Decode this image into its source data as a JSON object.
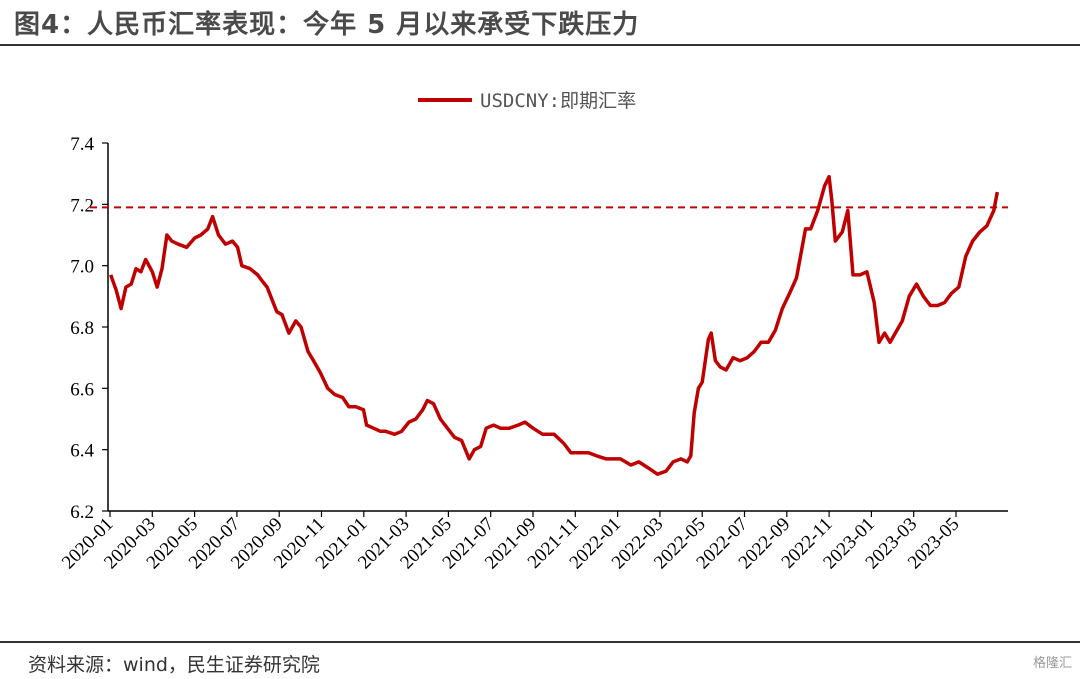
{
  "header": {
    "title": "图4：人民币汇率表现：今年 5 月以来承受下跌压力"
  },
  "footer": {
    "source": "资料来源：wind，民生证券研究院",
    "watermark": "格隆汇"
  },
  "colors": {
    "series": "#c00000",
    "axis": "#000000"
  },
  "chart_data": {
    "type": "line",
    "title": "",
    "xlabel": "",
    "ylabel": "",
    "ylim": [
      6.2,
      7.4
    ],
    "yticks": [
      "6.2",
      "6.4",
      "6.6",
      "6.8",
      "7.0",
      "7.2",
      "7.4"
    ],
    "xticks": [
      "2020-01",
      "2020-03",
      "2020-05",
      "2020-07",
      "2020-09",
      "2020-11",
      "2021-01",
      "2021-03",
      "2021-05",
      "2021-07",
      "2021-09",
      "2021-11",
      "2022-01",
      "2022-03",
      "2022-05",
      "2022-07",
      "2022-09",
      "2022-11",
      "2023-01",
      "2023-03",
      "2023-05"
    ],
    "grid": false,
    "legend": "top-center",
    "reference_line": {
      "y": 7.19,
      "style": "dashed"
    },
    "series": [
      {
        "name": "USDCNY:即期汇率",
        "points": [
          [
            "2020-01-02",
            6.97
          ],
          [
            "2020-01-10",
            6.92
          ],
          [
            "2020-01-17",
            6.86
          ],
          [
            "2020-01-24",
            6.93
          ],
          [
            "2020-02-01",
            6.94
          ],
          [
            "2020-02-08",
            6.99
          ],
          [
            "2020-02-15",
            6.98
          ],
          [
            "2020-02-22",
            7.02
          ],
          [
            "2020-03-01",
            6.98
          ],
          [
            "2020-03-08",
            6.93
          ],
          [
            "2020-03-15",
            6.99
          ],
          [
            "2020-03-22",
            7.1
          ],
          [
            "2020-03-29",
            7.08
          ],
          [
            "2020-04-08",
            7.07
          ],
          [
            "2020-04-20",
            7.06
          ],
          [
            "2020-05-01",
            7.09
          ],
          [
            "2020-05-10",
            7.1
          ],
          [
            "2020-05-20",
            7.12
          ],
          [
            "2020-05-27",
            7.16
          ],
          [
            "2020-06-05",
            7.1
          ],
          [
            "2020-06-15",
            7.07
          ],
          [
            "2020-06-25",
            7.08
          ],
          [
            "2020-07-02",
            7.06
          ],
          [
            "2020-07-08",
            7.0
          ],
          [
            "2020-07-20",
            6.99
          ],
          [
            "2020-07-31",
            6.97
          ],
          [
            "2020-08-07",
            6.95
          ],
          [
            "2020-08-14",
            6.93
          ],
          [
            "2020-08-28",
            6.85
          ],
          [
            "2020-09-05",
            6.84
          ],
          [
            "2020-09-15",
            6.78
          ],
          [
            "2020-09-25",
            6.82
          ],
          [
            "2020-10-02",
            6.8
          ],
          [
            "2020-10-12",
            6.72
          ],
          [
            "2020-10-20",
            6.69
          ],
          [
            "2020-10-30",
            6.65
          ],
          [
            "2020-11-10",
            6.6
          ],
          [
            "2020-11-20",
            6.58
          ],
          [
            "2020-12-01",
            6.57
          ],
          [
            "2020-12-10",
            6.54
          ],
          [
            "2020-12-20",
            6.54
          ],
          [
            "2020-12-31",
            6.53
          ],
          [
            "2021-01-05",
            6.48
          ],
          [
            "2021-01-15",
            6.47
          ],
          [
            "2021-01-25",
            6.46
          ],
          [
            "2021-02-02",
            6.46
          ],
          [
            "2021-02-15",
            6.45
          ],
          [
            "2021-02-25",
            6.46
          ],
          [
            "2021-03-05",
            6.49
          ],
          [
            "2021-03-15",
            6.5
          ],
          [
            "2021-03-25",
            6.53
          ],
          [
            "2021-04-01",
            6.56
          ],
          [
            "2021-04-10",
            6.55
          ],
          [
            "2021-04-20",
            6.5
          ],
          [
            "2021-04-30",
            6.47
          ],
          [
            "2021-05-10",
            6.44
          ],
          [
            "2021-05-20",
            6.43
          ],
          [
            "2021-05-31",
            6.37
          ],
          [
            "2021-06-08",
            6.4
          ],
          [
            "2021-06-17",
            6.41
          ],
          [
            "2021-06-25",
            6.47
          ],
          [
            "2021-07-05",
            6.48
          ],
          [
            "2021-07-15",
            6.47
          ],
          [
            "2021-07-28",
            6.47
          ],
          [
            "2021-08-10",
            6.48
          ],
          [
            "2021-08-20",
            6.49
          ],
          [
            "2021-09-01",
            6.47
          ],
          [
            "2021-09-15",
            6.45
          ],
          [
            "2021-10-01",
            6.45
          ],
          [
            "2021-10-15",
            6.42
          ],
          [
            "2021-10-25",
            6.39
          ],
          [
            "2021-11-10",
            6.39
          ],
          [
            "2021-11-20",
            6.39
          ],
          [
            "2021-12-01",
            6.38
          ],
          [
            "2021-12-15",
            6.37
          ],
          [
            "2022-01-05",
            6.37
          ],
          [
            "2022-01-20",
            6.35
          ],
          [
            "2022-02-01",
            6.36
          ],
          [
            "2022-02-15",
            6.34
          ],
          [
            "2022-02-28",
            6.32
          ],
          [
            "2022-03-10",
            6.33
          ],
          [
            "2022-03-20",
            6.36
          ],
          [
            "2022-04-01",
            6.37
          ],
          [
            "2022-04-10",
            6.36
          ],
          [
            "2022-04-15",
            6.38
          ],
          [
            "2022-04-20",
            6.52
          ],
          [
            "2022-04-26",
            6.6
          ],
          [
            "2022-05-01",
            6.62
          ],
          [
            "2022-05-10",
            6.76
          ],
          [
            "2022-05-14",
            6.78
          ],
          [
            "2022-05-20",
            6.69
          ],
          [
            "2022-05-27",
            6.67
          ],
          [
            "2022-06-05",
            6.66
          ],
          [
            "2022-06-15",
            6.7
          ],
          [
            "2022-06-25",
            6.69
          ],
          [
            "2022-07-05",
            6.7
          ],
          [
            "2022-07-15",
            6.72
          ],
          [
            "2022-07-25",
            6.75
          ],
          [
            "2022-08-05",
            6.75
          ],
          [
            "2022-08-15",
            6.79
          ],
          [
            "2022-08-25",
            6.86
          ],
          [
            "2022-09-05",
            6.91
          ],
          [
            "2022-09-15",
            6.96
          ],
          [
            "2022-09-28",
            7.12
          ],
          [
            "2022-10-05",
            7.12
          ],
          [
            "2022-10-15",
            7.18
          ],
          [
            "2022-10-25",
            7.26
          ],
          [
            "2022-11-01",
            7.29
          ],
          [
            "2022-11-05",
            7.21
          ],
          [
            "2022-11-10",
            7.08
          ],
          [
            "2022-11-20",
            7.11
          ],
          [
            "2022-11-28",
            7.18
          ],
          [
            "2022-12-05",
            6.97
          ],
          [
            "2022-12-15",
            6.97
          ],
          [
            "2022-12-25",
            6.98
          ],
          [
            "2023-01-05",
            6.88
          ],
          [
            "2023-01-12",
            6.75
          ],
          [
            "2023-01-20",
            6.78
          ],
          [
            "2023-01-28",
            6.75
          ],
          [
            "2023-02-05",
            6.78
          ],
          [
            "2023-02-15",
            6.82
          ],
          [
            "2023-02-25",
            6.9
          ],
          [
            "2023-03-05",
            6.94
          ],
          [
            "2023-03-15",
            6.9
          ],
          [
            "2023-03-25",
            6.87
          ],
          [
            "2023-04-05",
            6.87
          ],
          [
            "2023-04-15",
            6.88
          ],
          [
            "2023-04-25",
            6.91
          ],
          [
            "2023-05-05",
            6.93
          ],
          [
            "2023-05-15",
            7.03
          ],
          [
            "2023-05-25",
            7.08
          ],
          [
            "2023-06-05",
            7.11
          ],
          [
            "2023-06-15",
            7.13
          ],
          [
            "2023-06-25",
            7.18
          ],
          [
            "2023-06-30",
            7.24
          ]
        ]
      }
    ]
  }
}
